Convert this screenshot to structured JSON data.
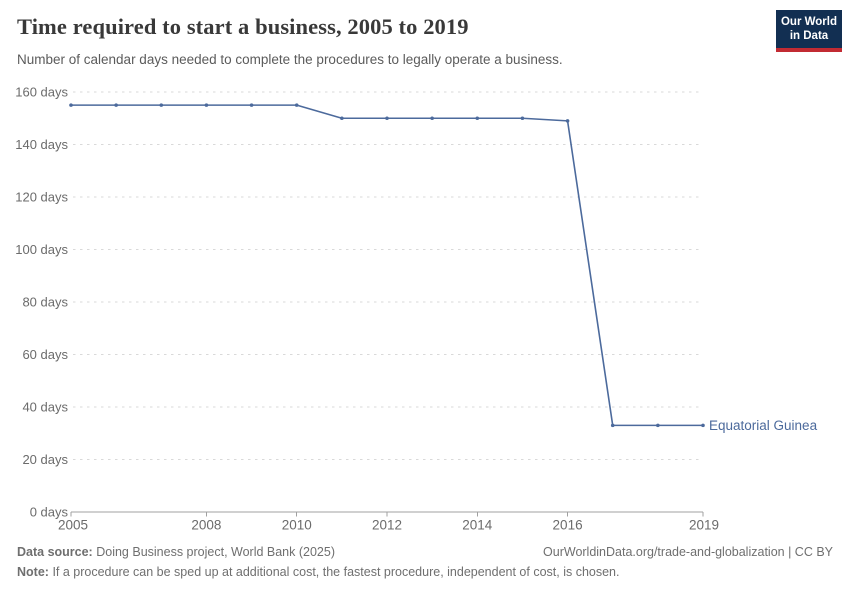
{
  "header": {
    "title": "Time required to start a business, 2005 to 2019",
    "subtitle": "Number of calendar days needed to complete the procedures to legally operate a business."
  },
  "logo": {
    "line1": "Our World",
    "line2": "in Data",
    "bg_color": "#122f52",
    "accent_color": "#c22b33",
    "text_color": "#ffffff"
  },
  "chart_data": {
    "type": "line",
    "title": "Time required to start a business, 2005 to 2019",
    "xlabel": "",
    "ylabel": "days",
    "x": [
      2005,
      2006,
      2007,
      2008,
      2009,
      2010,
      2011,
      2012,
      2013,
      2014,
      2015,
      2016,
      2017,
      2018,
      2019
    ],
    "series": [
      {
        "name": "Equatorial Guinea",
        "color": "#4c6a9c",
        "values": [
          155,
          155,
          155,
          155,
          155,
          155,
          150,
          150,
          150,
          150,
          150,
          149,
          33,
          33,
          33
        ]
      }
    ],
    "ylim": [
      0,
      160
    ],
    "yticks": [
      0,
      20,
      40,
      60,
      80,
      100,
      120,
      140,
      160
    ],
    "ytick_suffix": " days",
    "xticks": [
      2005,
      2008,
      2010,
      2012,
      2014,
      2016,
      2019
    ],
    "grid": "horizontal-dashed",
    "legend": "series-label-at-line-end"
  },
  "footer": {
    "datasource_label": "Data source:",
    "datasource_text": "Doing Business project, World Bank (2025)",
    "attribution": "OurWorldinData.org/trade-and-globalization | CC BY",
    "note_label": "Note:",
    "note_text": "If a procedure can be sped up at additional cost, the fastest procedure, independent of cost, is chosen."
  },
  "colors": {
    "line": "#4c6a9c",
    "grid": "#d9d9d9",
    "axis": "#a0a0a0",
    "tick_label": "#6b6b6b",
    "title": "#393939",
    "subtitle": "#5b5b5b",
    "footer": "#6f6f6f"
  }
}
